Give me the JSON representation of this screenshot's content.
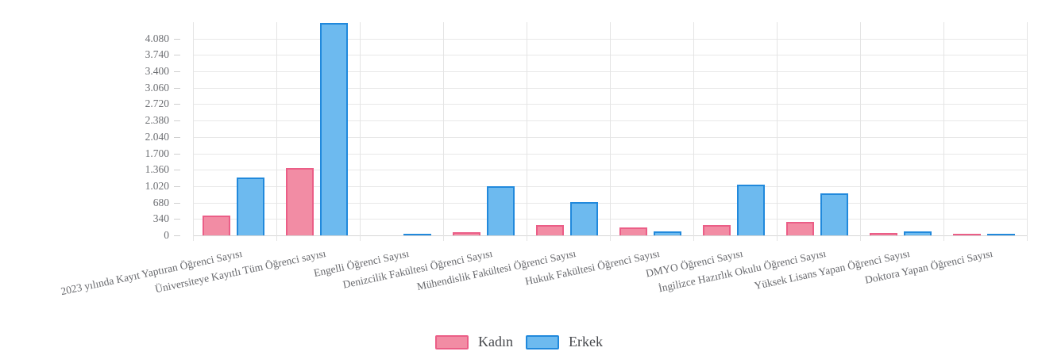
{
  "chart_data": {
    "type": "bar",
    "title": "",
    "xlabel": "",
    "ylabel": "",
    "categories": [
      "2023 yılında Kayıt Yaptıran Öğrenci Sayısı",
      "Üniversiteye Kayıtlı Tüm Öğrenci sayısı",
      "Engelli Öğrenci Sayısı",
      "Denizcilik Fakültesi Öğrenci Sayısı",
      "Mühendislik Fakültesi Öğrenci Sayısı",
      "Hukuk Fakültesi Öğrenci Sayısı",
      "DMYO Öğrenci Sayısı",
      "İngilizce Hazırlık Okulu Öğrenci Sayısı",
      "Yüksek Lisans Yapan Öğrenci Sayısı",
      "Doktora Yapan Öğrenci Sayısı"
    ],
    "series": [
      {
        "name": "Kadın",
        "fill_color": "#F28CA4",
        "border_color": "#EB5E87",
        "values": [
          410,
          1390,
          0,
          60,
          215,
          160,
          210,
          280,
          45,
          10
        ]
      },
      {
        "name": "Erkek",
        "fill_color": "#6DBAEF",
        "border_color": "#2189DC",
        "values": [
          1200,
          4400,
          10,
          1020,
          690,
          90,
          1050,
          870,
          75,
          35
        ]
      }
    ],
    "ylim": [
      0,
      4420
    ],
    "ytick_step": 340,
    "ytick_labels": [
      "0",
      "340",
      "680",
      "1.020",
      "1.360",
      "1.700",
      "2.040",
      "2.380",
      "2.720",
      "3.060",
      "3.400",
      "3.740",
      "4.080"
    ],
    "grid": true,
    "legend_position": "bottom"
  }
}
